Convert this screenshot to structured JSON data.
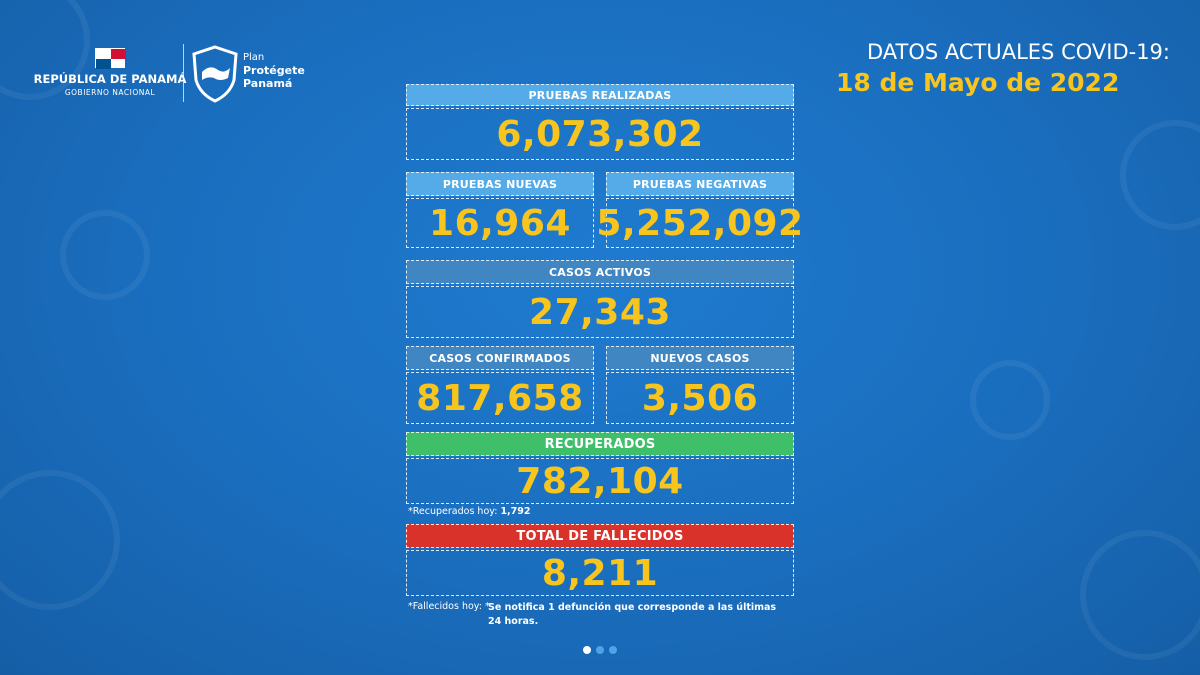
{
  "header": {
    "country": "REPÚBLICA DE PANAMÁ",
    "government": "GOBIERNO NACIONAL",
    "plan": "Plan",
    "plan_name_1": "Protégete",
    "plan_name_2": "Panamá",
    "title": "DATOS ACTUALES COVID-19:",
    "date": "18 de Mayo de 2022"
  },
  "stats": {
    "pruebas_realizadas": {
      "label": "PRUEBAS REALIZADAS",
      "value": "6,073,302"
    },
    "pruebas_nuevas": {
      "label": "PRUEBAS NUEVAS",
      "value": "16,964"
    },
    "pruebas_negativas": {
      "label": "PRUEBAS NEGATIVAS",
      "value": "5,252,092"
    },
    "casos_activos": {
      "label": "CASOS ACTIVOS",
      "value": "27,343"
    },
    "casos_confirmados": {
      "label": "CASOS CONFIRMADOS",
      "value": "817,658"
    },
    "nuevos_casos": {
      "label": "NUEVOS CASOS",
      "value": "3,506"
    },
    "recuperados": {
      "label": "RECUPERADOS",
      "value": "782,104"
    },
    "fallecidos": {
      "label": "TOTAL DE FALLECIDOS",
      "value": "8,211"
    }
  },
  "notes": {
    "recuperados_label": "*Recuperados hoy:",
    "recuperados_value": "1,792",
    "fallecidos_label": "*Fallecidos hoy: *",
    "fallecidos_text": "Se notifica 1 defunción que corresponde a las últimas 24 horas."
  }
}
